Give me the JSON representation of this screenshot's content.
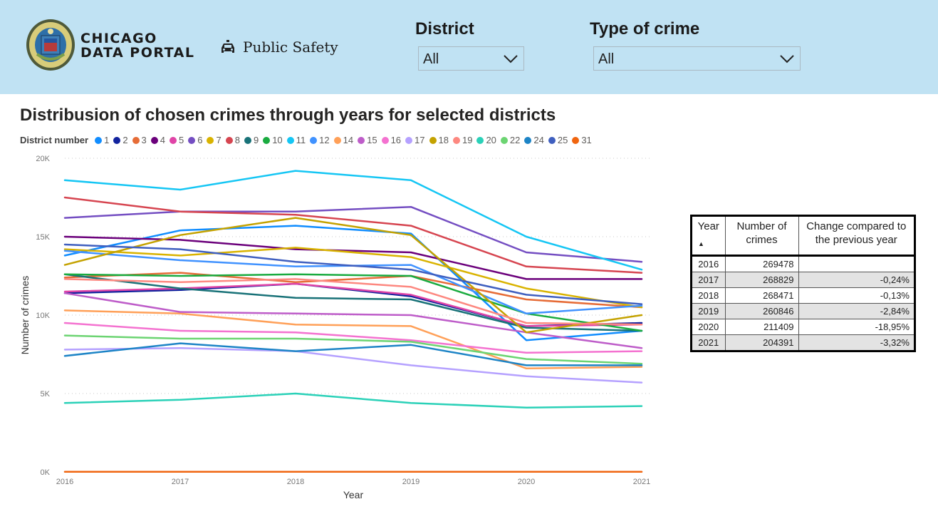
{
  "header": {
    "brand_line1": "CHICAGO",
    "brand_line2": "DATA PORTAL",
    "section_title": "Public Safety",
    "seal_text": "CITY OF CHICAGO · INCORPORATED 4TH MARCH 1837",
    "filters": [
      {
        "title": "District",
        "value": "All"
      },
      {
        "title": "Type of crime",
        "value": "All"
      }
    ],
    "background": "#c0e2f3"
  },
  "chart_title": "Distribusion of chosen crimes through years for selected districts",
  "legend_title": "District number",
  "chart_data": {
    "type": "line",
    "xlabel": "Year",
    "ylabel": "Number of crimes",
    "x": [
      "2016",
      "2017",
      "2018",
      "2019",
      "2020",
      "2021"
    ],
    "ylim": [
      0,
      20000
    ],
    "yticks": [
      0,
      5000,
      10000,
      15000,
      20000
    ],
    "ytick_labels": [
      "0K",
      "5K",
      "10K",
      "15K",
      "20K"
    ],
    "grid": true,
    "legend_position": "top-left",
    "series": [
      {
        "name": "1",
        "color": "#118dff",
        "values": [
          13800,
          15400,
          15700,
          15200,
          8400,
          9000
        ]
      },
      {
        "name": "2",
        "color": "#12239e",
        "values": [
          11400,
          11600,
          12000,
          11200,
          9300,
          9500
        ]
      },
      {
        "name": "3",
        "color": "#e66c37",
        "values": [
          12400,
          12700,
          12100,
          12500,
          11000,
          10500
        ]
      },
      {
        "name": "4",
        "color": "#6b007b",
        "values": [
          15000,
          14800,
          14200,
          14000,
          12300,
          12300
        ]
      },
      {
        "name": "5",
        "color": "#e044a7",
        "values": [
          11500,
          11700,
          12000,
          11300,
          9300,
          9400
        ]
      },
      {
        "name": "6",
        "color": "#744ec2",
        "values": [
          16200,
          16600,
          16600,
          16900,
          14000,
          13400
        ]
      },
      {
        "name": "7",
        "color": "#d9b300",
        "values": [
          14200,
          13800,
          14300,
          13700,
          11700,
          10500
        ]
      },
      {
        "name": "8",
        "color": "#d64550",
        "values": [
          17500,
          16600,
          16400,
          15700,
          13100,
          12700
        ]
      },
      {
        "name": "9",
        "color": "#197278",
        "values": [
          12600,
          11700,
          11100,
          11000,
          9200,
          9000
        ]
      },
      {
        "name": "10",
        "color": "#1aab40",
        "values": [
          12600,
          12500,
          12600,
          12500,
          10100,
          9000
        ]
      },
      {
        "name": "11",
        "color": "#15c6f4",
        "values": [
          18600,
          18000,
          19200,
          18600,
          15000,
          12900
        ]
      },
      {
        "name": "12",
        "color": "#4092ff",
        "values": [
          14100,
          13500,
          13100,
          13200,
          10100,
          10600
        ]
      },
      {
        "name": "14",
        "color": "#ffa058",
        "values": [
          10300,
          10100,
          9400,
          9300,
          6600,
          6700
        ]
      },
      {
        "name": "15",
        "color": "#be5dc9",
        "values": [
          11400,
          10200,
          10100,
          10000,
          8900,
          7900
        ]
      },
      {
        "name": "16",
        "color": "#f472d0",
        "values": [
          9500,
          9000,
          8900,
          8400,
          7600,
          7700
        ]
      },
      {
        "name": "17",
        "color": "#b5a1ff",
        "values": [
          7800,
          7900,
          7700,
          6800,
          6100,
          5700
        ]
      },
      {
        "name": "18",
        "color": "#c4a200",
        "values": [
          13200,
          15100,
          16200,
          15100,
          8900,
          10000
        ]
      },
      {
        "name": "19",
        "color": "#fd8880",
        "values": [
          12300,
          12100,
          12300,
          11800,
          9500,
          9400
        ]
      },
      {
        "name": "20",
        "color": "#2bd1b8",
        "values": [
          4400,
          4600,
          5000,
          4400,
          4100,
          4200
        ]
      },
      {
        "name": "22",
        "color": "#6cd472",
        "values": [
          8700,
          8500,
          8500,
          8300,
          7200,
          6900
        ]
      },
      {
        "name": "24",
        "color": "#1d84c6",
        "values": [
          7400,
          8200,
          7700,
          8100,
          6800,
          6800
        ]
      },
      {
        "name": "25",
        "color": "#3f5fbf",
        "values": [
          14500,
          14200,
          13400,
          12900,
          11300,
          10700
        ]
      },
      {
        "name": "31",
        "color": "#f0650f",
        "values": [
          10,
          10,
          10,
          10,
          10,
          10
        ]
      }
    ]
  },
  "table": {
    "columns": [
      "Year",
      "Number of crimes",
      "Change compared to the previous year"
    ],
    "rows": [
      {
        "year": "2016",
        "crimes": "269478",
        "change": ""
      },
      {
        "year": "2017",
        "crimes": "268829",
        "change": "-0,24%"
      },
      {
        "year": "2018",
        "crimes": "268471",
        "change": "-0,13%"
      },
      {
        "year": "2019",
        "crimes": "260846",
        "change": "-2,84%"
      },
      {
        "year": "2020",
        "crimes": "211409",
        "change": "-18,95%"
      },
      {
        "year": "2021",
        "crimes": "204391",
        "change": "-3,32%"
      }
    ]
  }
}
